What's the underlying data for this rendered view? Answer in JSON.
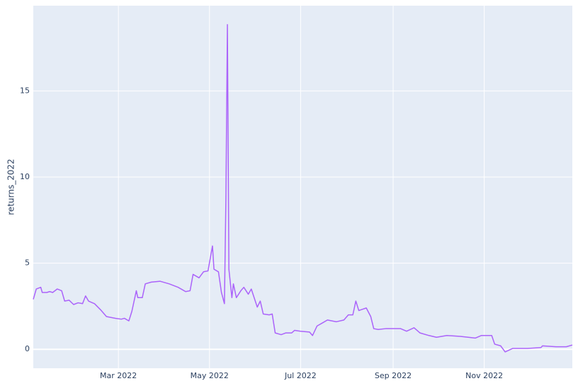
{
  "chart_data": {
    "type": "line",
    "y_label": "returns_2022",
    "x": [
      3,
      5,
      8,
      9,
      12,
      14,
      16,
      19,
      22,
      24,
      27,
      30,
      33,
      36,
      38,
      40,
      44,
      48,
      52,
      58,
      62,
      64,
      67,
      69,
      72,
      73,
      76,
      78,
      82,
      88,
      94,
      100,
      103,
      105,
      108,
      110,
      114,
      117,
      120,
      123,
      124,
      127,
      129,
      131,
      132,
      133,
      134,
      136,
      137,
      139,
      142,
      144,
      147,
      149,
      153,
      155,
      157,
      161,
      163,
      165,
      169,
      172,
      176,
      178,
      182,
      188,
      190,
      193,
      197,
      200,
      206,
      211,
      214,
      217,
      219,
      221,
      226,
      229,
      231,
      234,
      239,
      249,
      253,
      258,
      262,
      268,
      273,
      280,
      289,
      299,
      303,
      310,
      312,
      316,
      319,
      324,
      334,
      343,
      344,
      353,
      360,
      364
    ],
    "series": [
      {
        "name": "returns_2022",
        "color": "#ab63fa",
        "values": [
          2.9,
          3.5,
          3.6,
          3.3,
          3.3,
          3.35,
          3.3,
          3.5,
          3.4,
          2.8,
          2.85,
          2.6,
          2.7,
          2.65,
          3.1,
          2.8,
          2.65,
          2.3,
          1.9,
          1.8,
          1.75,
          1.8,
          1.65,
          2.2,
          3.4,
          3.0,
          3.0,
          3.8,
          3.9,
          3.95,
          3.8,
          3.6,
          3.45,
          3.35,
          3.4,
          4.35,
          4.15,
          4.5,
          4.55,
          6.0,
          4.65,
          4.5,
          3.3,
          2.65,
          8.8,
          18.85,
          4.65,
          3.0,
          3.8,
          3.0,
          3.4,
          3.6,
          3.2,
          3.5,
          2.45,
          2.8,
          2.05,
          2.0,
          2.05,
          0.95,
          0.85,
          0.95,
          0.95,
          1.1,
          1.05,
          1.0,
          0.8,
          1.35,
          1.55,
          1.7,
          1.6,
          1.7,
          2.0,
          2.0,
          2.8,
          2.25,
          2.4,
          1.9,
          1.2,
          1.15,
          1.2,
          1.2,
          1.05,
          1.25,
          0.95,
          0.8,
          0.7,
          0.8,
          0.75,
          0.65,
          0.8,
          0.8,
          0.3,
          0.2,
          -0.15,
          0.05,
          0.05,
          0.1,
          0.2,
          0.15,
          0.15,
          0.25
        ]
      }
    ],
    "xlim": [
      3,
      364
    ],
    "xticks": [
      {
        "value": 60,
        "label": "Mar 2022"
      },
      {
        "value": 121,
        "label": "May 2022"
      },
      {
        "value": 182,
        "label": "Jul 2022"
      },
      {
        "value": 244,
        "label": "Sep 2022"
      },
      {
        "value": 305,
        "label": "Nov 2022"
      }
    ],
    "ylim": [
      -1.1,
      19.95
    ],
    "yticks": [
      0,
      5,
      10,
      15
    ],
    "grid": true
  }
}
